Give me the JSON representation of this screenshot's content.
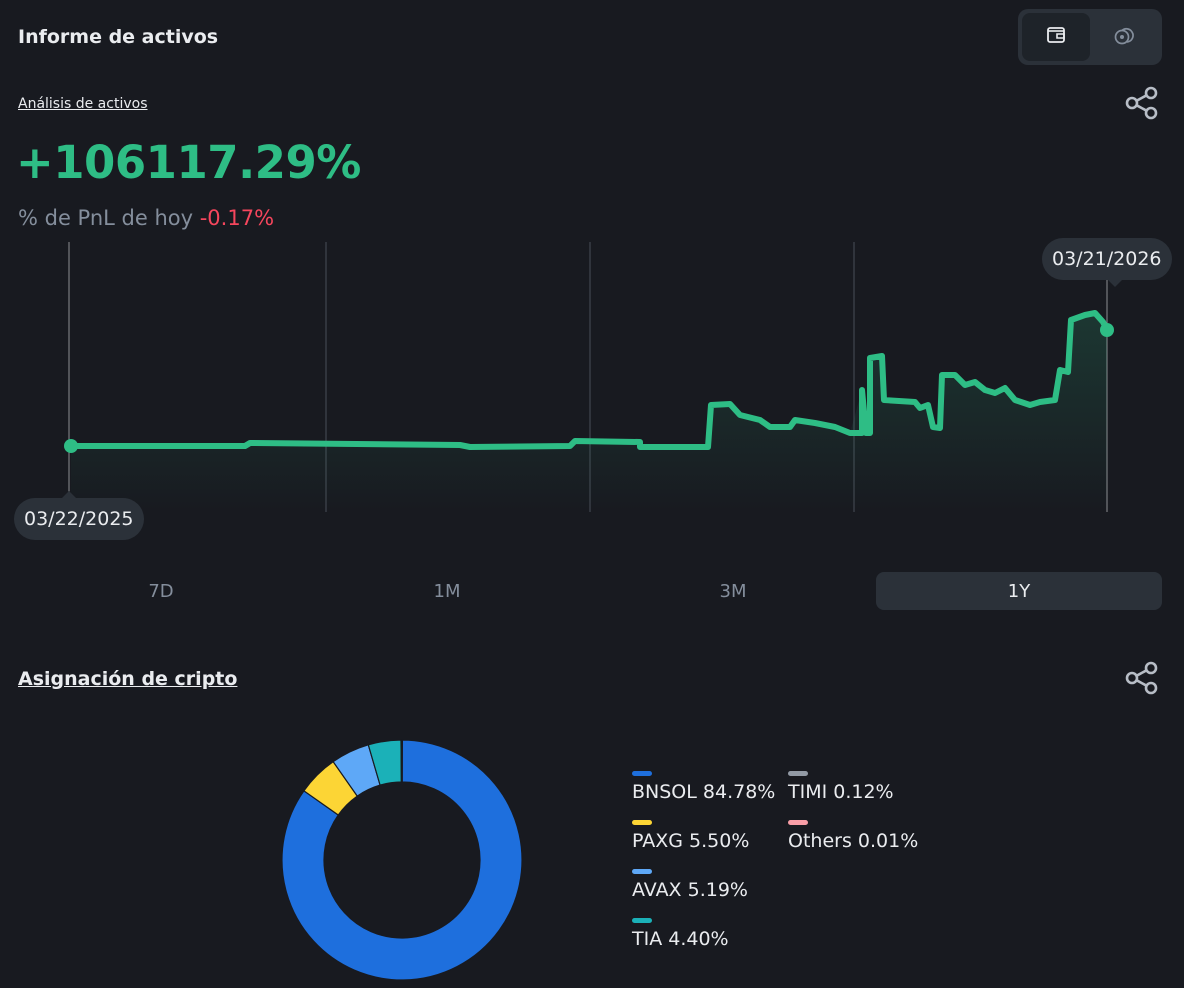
{
  "header": {
    "title": "Informe de activos"
  },
  "toggle": {
    "options": [
      {
        "icon": "wallet-icon",
        "active": true
      },
      {
        "icon": "coins-icon",
        "active": false
      }
    ]
  },
  "asset_analysis": {
    "link_label": "Análisis de activos",
    "total_pnl_pct": "+106117.29%",
    "today_label": "% de PnL de hoy",
    "today_value": "-0.17%"
  },
  "chart_data": {
    "type": "line",
    "start_label": "03/22/2025",
    "end_label": "03/21/2026",
    "color": "#2ebd85"
  },
  "ranges": [
    {
      "label": "7D",
      "active": false
    },
    {
      "label": "1M",
      "active": false
    },
    {
      "label": "3M",
      "active": false
    },
    {
      "label": "1Y",
      "active": true
    }
  ],
  "allocation": {
    "title": "Asignación de cripto",
    "items": [
      {
        "label": "BNSOL 84.78%",
        "asset": "BNSOL",
        "pct": 84.78,
        "color": "#1e6fdd"
      },
      {
        "label": "PAXG 5.50%",
        "asset": "PAXG",
        "pct": 5.5,
        "color": "#fcd535"
      },
      {
        "label": "AVAX 5.19%",
        "asset": "AVAX",
        "pct": 5.19,
        "color": "#5ea8f7"
      },
      {
        "label": "TIA 4.40%",
        "asset": "TIA",
        "pct": 4.4,
        "color": "#1bb1b8"
      },
      {
        "label": "TIMI 0.12%",
        "asset": "TIMI",
        "pct": 0.12,
        "color": "#929aa5"
      },
      {
        "label": "Others 0.01%",
        "asset": "Others",
        "pct": 0.01,
        "color": "#f99ea7"
      }
    ]
  }
}
